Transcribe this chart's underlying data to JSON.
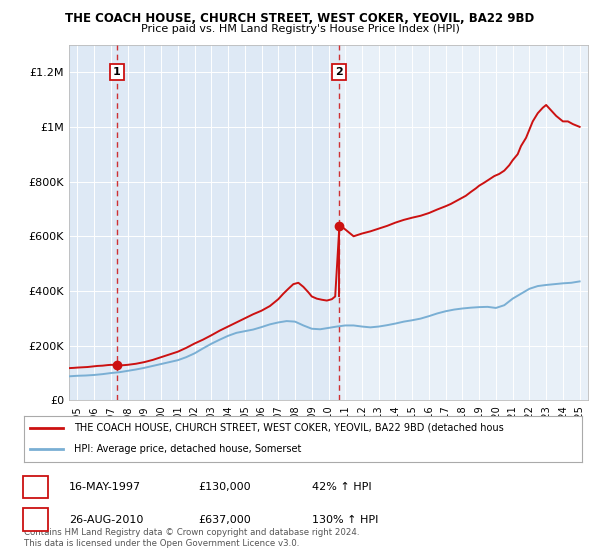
{
  "title": "THE COACH HOUSE, CHURCH STREET, WEST COKER, YEOVIL, BA22 9BD",
  "subtitle": "Price paid vs. HM Land Registry's House Price Index (HPI)",
  "background_color": "#ffffff",
  "plot_bg_color": "#e8f0f8",
  "hpi_color": "#7aafd4",
  "price_color": "#cc1111",
  "sale1_date": 1997.37,
  "sale1_price": 130000,
  "sale2_date": 2010.65,
  "sale2_price": 637000,
  "legend_line1": "THE COACH HOUSE, CHURCH STREET, WEST COKER, YEOVIL, BA22 9BD (detached hous",
  "legend_line2": "HPI: Average price, detached house, Somerset",
  "footer": "Contains HM Land Registry data © Crown copyright and database right 2024.\nThis data is licensed under the Open Government Licence v3.0.",
  "xlim": [
    1994.5,
    2025.5
  ],
  "ylim": [
    0,
    1300000
  ],
  "yticks": [
    0,
    200000,
    400000,
    600000,
    800000,
    1000000,
    1200000
  ],
  "ytick_labels": [
    "£0",
    "£200K",
    "£400K",
    "£600K",
    "£800K",
    "£1M",
    "£1.2M"
  ],
  "xticks": [
    1995,
    1996,
    1997,
    1998,
    1999,
    2000,
    2001,
    2002,
    2003,
    2004,
    2005,
    2006,
    2007,
    2008,
    2009,
    2010,
    2011,
    2012,
    2013,
    2014,
    2015,
    2016,
    2017,
    2018,
    2019,
    2020,
    2021,
    2022,
    2023,
    2024,
    2025
  ],
  "hpi_years": [
    1994.5,
    1995.0,
    1995.5,
    1996.0,
    1996.5,
    1997.0,
    1997.5,
    1998.0,
    1998.5,
    1999.0,
    1999.5,
    2000.0,
    2000.5,
    2001.0,
    2001.5,
    2002.0,
    2002.5,
    2003.0,
    2003.5,
    2004.0,
    2004.5,
    2005.0,
    2005.5,
    2006.0,
    2006.5,
    2007.0,
    2007.5,
    2008.0,
    2008.5,
    2009.0,
    2009.5,
    2010.0,
    2010.5,
    2011.0,
    2011.5,
    2012.0,
    2012.5,
    2013.0,
    2013.5,
    2014.0,
    2014.5,
    2015.0,
    2015.5,
    2016.0,
    2016.5,
    2017.0,
    2017.5,
    2018.0,
    2018.5,
    2019.0,
    2019.5,
    2020.0,
    2020.5,
    2021.0,
    2021.5,
    2022.0,
    2022.5,
    2023.0,
    2023.5,
    2024.0,
    2024.5,
    2025.0
  ],
  "hpi_vals": [
    88000,
    90000,
    91000,
    93000,
    96000,
    100000,
    103000,
    108000,
    113000,
    119000,
    126000,
    133000,
    140000,
    147000,
    158000,
    172000,
    190000,
    207000,
    222000,
    236000,
    247000,
    253000,
    259000,
    268000,
    278000,
    285000,
    290000,
    288000,
    274000,
    262000,
    260000,
    265000,
    270000,
    274000,
    274000,
    270000,
    267000,
    270000,
    275000,
    281000,
    288000,
    293000,
    299000,
    308000,
    318000,
    326000,
    332000,
    336000,
    339000,
    341000,
    342000,
    338000,
    348000,
    372000,
    390000,
    408000,
    418000,
    422000,
    425000,
    428000,
    430000,
    435000
  ],
  "red_years": [
    1994.5,
    1994.8,
    1995.0,
    1995.3,
    1995.6,
    1995.9,
    1996.2,
    1996.5,
    1996.8,
    1997.0,
    1997.2,
    1997.37,
    1997.6,
    1998.0,
    1998.5,
    1999.0,
    1999.5,
    2000.0,
    2000.5,
    2001.0,
    2001.5,
    2002.0,
    2002.5,
    2003.0,
    2003.5,
    2004.0,
    2004.5,
    2005.0,
    2005.5,
    2006.0,
    2006.5,
    2007.0,
    2007.3,
    2007.6,
    2007.9,
    2008.2,
    2008.5,
    2008.8,
    2009.0,
    2009.3,
    2009.6,
    2009.9,
    2010.2,
    2010.4,
    2010.65,
    2010.9,
    2011.2,
    2011.5,
    2012.0,
    2012.5,
    2013.0,
    2013.5,
    2014.0,
    2014.5,
    2015.0,
    2015.5,
    2016.0,
    2016.5,
    2017.0,
    2017.3,
    2017.6,
    2017.9,
    2018.2,
    2018.5,
    2018.8,
    2019.0,
    2019.3,
    2019.6,
    2019.9,
    2020.2,
    2020.5,
    2020.8,
    2021.0,
    2021.3,
    2021.5,
    2021.8,
    2022.0,
    2022.2,
    2022.5,
    2022.8,
    2023.0,
    2023.3,
    2023.6,
    2024.0,
    2024.3,
    2024.6,
    2025.0
  ],
  "red_vals": [
    118000,
    119000,
    120000,
    121000,
    122000,
    124000,
    126000,
    127000,
    129000,
    130000,
    130000,
    130000,
    128000,
    130000,
    134000,
    140000,
    148000,
    158000,
    168000,
    178000,
    192000,
    208000,
    222000,
    238000,
    255000,
    270000,
    285000,
    300000,
    315000,
    328000,
    345000,
    370000,
    390000,
    408000,
    425000,
    430000,
    415000,
    395000,
    380000,
    372000,
    368000,
    365000,
    370000,
    380000,
    637000,
    630000,
    615000,
    600000,
    610000,
    618000,
    628000,
    638000,
    650000,
    660000,
    668000,
    675000,
    685000,
    698000,
    710000,
    718000,
    728000,
    738000,
    748000,
    762000,
    775000,
    785000,
    796000,
    808000,
    820000,
    828000,
    840000,
    860000,
    878000,
    900000,
    930000,
    960000,
    990000,
    1020000,
    1050000,
    1070000,
    1080000,
    1060000,
    1040000,
    1020000,
    1020000,
    1010000,
    1000000
  ]
}
